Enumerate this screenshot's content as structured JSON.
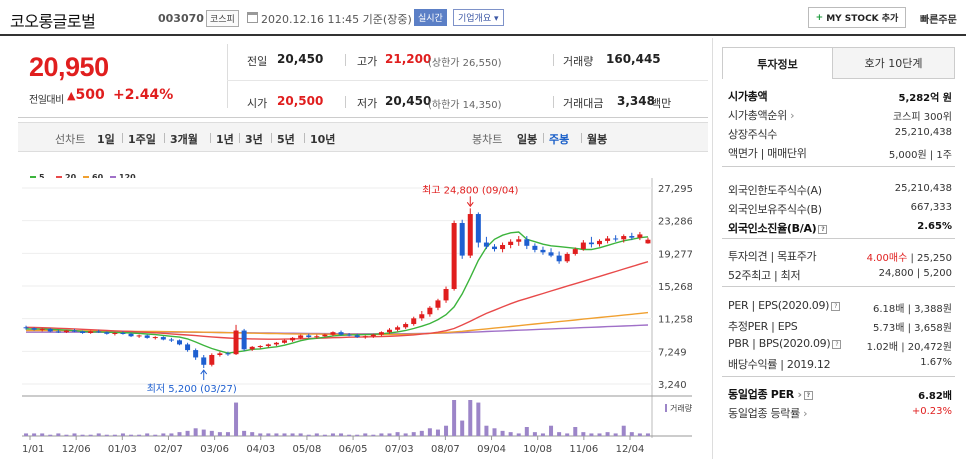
{
  "header": {
    "stock_name": "코오롱글로벌",
    "stock_code": "003070",
    "market": "코스피",
    "timestamp": "2020.12.16 11:45 기준(장중)",
    "realtime_badge": "실시간",
    "company_overview": "기업개요",
    "mystock_button": "MY STOCK 추가",
    "quick_order": "빠른주문"
  },
  "price": {
    "current": "20,950",
    "change_label": "전일대비",
    "change_amount": "500",
    "change_pct": "+2.44%"
  },
  "quote": {
    "prev_close_label": "전일",
    "prev_close": "20,450",
    "high_label": "고가",
    "high": "21,200",
    "upper_limit": "(상한가 26,550)",
    "volume_label": "거래량",
    "volume": "160,445",
    "open_label": "시가",
    "open": "20,500",
    "low_label": "저가",
    "low": "20,450",
    "lower_limit": "(하한가 14,350)",
    "trade_value_label": "거래대금",
    "trade_value": "3,348",
    "trade_value_unit": "백만"
  },
  "period_bar": {
    "line_label": "선차트",
    "line_items": [
      "1일",
      "1주일",
      "3개월",
      "1년",
      "3년",
      "5년",
      "10년"
    ],
    "candle_label": "봉차트",
    "candle_items": [
      "일봉",
      "주봉",
      "월봉"
    ],
    "active_candle": "주봉"
  },
  "colors": {
    "up": "#e01e1e",
    "down": "#1e5fd0",
    "ma5": "#3cb43c",
    "ma20": "#e84a4a",
    "ma60": "#f0a030",
    "ma120": "#a070c8",
    "volume": "#9c85c8"
  },
  "chart_data": {
    "type": "line",
    "legend": [
      {
        "label": "5",
        "color": "#3cb43c"
      },
      {
        "label": "20",
        "color": "#e84a4a"
      },
      {
        "label": "60",
        "color": "#f0a030"
      },
      {
        "label": "120",
        "color": "#a070c8"
      }
    ],
    "y_ticks": [
      "27,295",
      "23,286",
      "19,277",
      "15,268",
      "11,258",
      "7,249",
      "3,240"
    ],
    "ylim": [
      3240,
      27295
    ],
    "x_ticks": [
      "11/01",
      "12/06",
      "01/03",
      "02/07",
      "03/06",
      "04/03",
      "05/08",
      "06/05",
      "07/03",
      "08/07",
      "09/04",
      "10/08",
      "11/06",
      "12/04"
    ],
    "annotations": {
      "high": "최고 24,800 (09/04)",
      "low": "최저 5,200 (03/27)"
    },
    "volume_label": "거래량",
    "candles": [
      [
        10200,
        10400,
        9900,
        10100
      ],
      [
        10100,
        10200,
        9800,
        9900
      ],
      [
        9900,
        10100,
        9700,
        10000
      ],
      [
        10000,
        10100,
        9600,
        9700
      ],
      [
        9700,
        9900,
        9500,
        9600
      ],
      [
        9600,
        9900,
        9500,
        9800
      ],
      [
        9800,
        10000,
        9600,
        9700
      ],
      [
        9700,
        9800,
        9400,
        9500
      ],
      [
        9500,
        9800,
        9400,
        9700
      ],
      [
        9700,
        9900,
        9500,
        9600
      ],
      [
        9600,
        9700,
        9300,
        9400
      ],
      [
        9400,
        9600,
        9200,
        9500
      ],
      [
        9500,
        9700,
        9300,
        9400
      ],
      [
        9400,
        9500,
        9000,
        9100
      ],
      [
        9100,
        9300,
        8900,
        9200
      ],
      [
        9200,
        9300,
        8800,
        8900
      ],
      [
        8900,
        9100,
        8700,
        9000
      ],
      [
        9000,
        9100,
        8600,
        8700
      ],
      [
        8700,
        8900,
        8400,
        8600
      ],
      [
        8600,
        8700,
        8000,
        8100
      ],
      [
        8100,
        8300,
        7200,
        7400
      ],
      [
        7400,
        7600,
        6200,
        6500
      ],
      [
        6500,
        6800,
        5200,
        5600
      ],
      [
        5600,
        7000,
        5400,
        6800
      ],
      [
        6800,
        7200,
        6600,
        7000
      ],
      [
        7000,
        7200,
        6700,
        6900
      ],
      [
        6900,
        10500,
        6800,
        9800
      ],
      [
        9800,
        10000,
        7300,
        7500
      ],
      [
        7500,
        7900,
        7300,
        7800
      ],
      [
        7800,
        8000,
        7600,
        7900
      ],
      [
        7900,
        8200,
        7700,
        8100
      ],
      [
        8100,
        8400,
        7900,
        8300
      ],
      [
        8300,
        8700,
        8200,
        8600
      ],
      [
        8600,
        9000,
        8400,
        8900
      ],
      [
        8900,
        9300,
        8700,
        9200
      ],
      [
        9200,
        9400,
        8900,
        9000
      ],
      [
        9000,
        9300,
        8800,
        9100
      ],
      [
        9100,
        9400,
        9000,
        9300
      ],
      [
        9300,
        9700,
        9100,
        9600
      ],
      [
        9600,
        9800,
        9200,
        9300
      ],
      [
        9300,
        9500,
        9100,
        9200
      ],
      [
        9200,
        9400,
        8900,
        9000
      ],
      [
        9000,
        9200,
        8800,
        9100
      ],
      [
        9100,
        9400,
        8900,
        9300
      ],
      [
        9300,
        9700,
        9100,
        9600
      ],
      [
        9600,
        10100,
        9400,
        9900
      ],
      [
        9900,
        10400,
        9700,
        10200
      ],
      [
        10200,
        10800,
        10000,
        10600
      ],
      [
        10600,
        11500,
        10400,
        11300
      ],
      [
        11300,
        12200,
        11000,
        11800
      ],
      [
        11800,
        12800,
        11500,
        12600
      ],
      [
        12600,
        13700,
        12300,
        13500
      ],
      [
        13500,
        15200,
        13200,
        14900
      ],
      [
        14900,
        23300,
        14700,
        23000
      ],
      [
        23000,
        23400,
        18600,
        19000
      ],
      [
        19000,
        24800,
        18700,
        24100
      ],
      [
        24100,
        24300,
        20000,
        20600
      ],
      [
        20600,
        21300,
        19800,
        20100
      ],
      [
        20100,
        20400,
        19500,
        19800
      ],
      [
        19800,
        20600,
        19400,
        20300
      ],
      [
        20300,
        21000,
        19900,
        20700
      ],
      [
        20700,
        21400,
        20200,
        21000
      ],
      [
        21000,
        21400,
        19800,
        20200
      ],
      [
        20200,
        20500,
        19400,
        19700
      ],
      [
        19700,
        20100,
        19100,
        19400
      ],
      [
        19400,
        19900,
        18800,
        19000
      ],
      [
        19000,
        19500,
        18000,
        18300
      ],
      [
        18300,
        19400,
        18100,
        19200
      ],
      [
        19200,
        20000,
        19000,
        19800
      ],
      [
        19800,
        20900,
        19600,
        20600
      ],
      [
        20600,
        21300,
        20000,
        20400
      ],
      [
        20400,
        21000,
        20100,
        20800
      ],
      [
        20800,
        21400,
        20500,
        21100
      ],
      [
        21100,
        21500,
        20700,
        21000
      ],
      [
        21000,
        21600,
        20600,
        21400
      ],
      [
        21400,
        21800,
        20900,
        21200
      ],
      [
        21200,
        21900,
        20900,
        21600
      ],
      [
        20500,
        21200,
        20450,
        20950
      ]
    ],
    "ma5": [
      10000,
      9990,
      9980,
      9950,
      9900,
      9860,
      9780,
      9700,
      9640,
      9630,
      9600,
      9560,
      9540,
      9500,
      9450,
      9380,
      9300,
      9210,
      9100,
      8990,
      8780,
      8400,
      7980,
      7600,
      7300,
      7020,
      7180,
      7300,
      7500,
      7550,
      7700,
      7800,
      8000,
      8260,
      8560,
      8750,
      8850,
      8980,
      9140,
      9220,
      9260,
      9280,
      9300,
      9340,
      9400,
      9500,
      9630,
      9810,
      10050,
      10330,
      10660,
      11140,
      11740,
      12700,
      14300,
      16300,
      18400,
      20000,
      21000,
      21500,
      21800,
      21900,
      21000,
      20700,
      20400,
      20200,
      20100,
      20000,
      19900,
      19750,
      19750,
      19950,
      20250,
      20550,
      20820,
      21000,
      21200,
      21300
    ],
    "ma20": [
      10200,
      10180,
      10150,
      10110,
      10080,
      10040,
      10000,
      9950,
      9900,
      9850,
      9800,
      9760,
      9720,
      9680,
      9630,
      9580,
      9520,
      9460,
      9390,
      9320,
      9250,
      9180,
      9100,
      9020,
      8950,
      8890,
      8840,
      8800,
      8770,
      8750,
      8740,
      8740,
      8750,
      8770,
      8800,
      8830,
      8860,
      8890,
      8920,
      8950,
      8980,
      9000,
      9020,
      9040,
      9060,
      9100,
      9140,
      9200,
      9270,
      9360,
      9460,
      9600,
      9780,
      10050,
      10480,
      10950,
      11430,
      11900,
      12300,
      12700,
      13100,
      13450,
      13750,
      14050,
      14350,
      14650,
      14950,
      15250,
      15550,
      15850,
      16150,
      16450,
      16750,
      17050,
      17350,
      17650,
      17950,
      18250
    ],
    "ma60": [
      9800,
      9800,
      9800,
      9800,
      9800,
      9790,
      9780,
      9770,
      9760,
      9750,
      9740,
      9730,
      9720,
      9710,
      9700,
      9690,
      9680,
      9670,
      9660,
      9650,
      9640,
      9620,
      9600,
      9580,
      9560,
      9540,
      9520,
      9500,
      9480,
      9460,
      9440,
      9420,
      9400,
      9390,
      9380,
      9370,
      9360,
      9350,
      9340,
      9330,
      9320,
      9310,
      9300,
      9300,
      9300,
      9300,
      9310,
      9330,
      9360,
      9400,
      9450,
      9500,
      9560,
      9630,
      9710,
      9800,
      9900,
      10000,
      10100,
      10200,
      10300,
      10400,
      10500,
      10600,
      10700,
      10800,
      10900,
      11000,
      11100,
      11200,
      11300,
      11400,
      11500,
      11600,
      11700,
      11800,
      11900,
      12000
    ],
    "ma120": [
      9600,
      9600,
      9600,
      9600,
      9600,
      9600,
      9600,
      9600,
      9600,
      9600,
      9600,
      9600,
      9600,
      9600,
      9600,
      9600,
      9600,
      9600,
      9600,
      9600,
      9600,
      9590,
      9580,
      9570,
      9560,
      9550,
      9540,
      9530,
      9520,
      9510,
      9500,
      9490,
      9480,
      9470,
      9460,
      9450,
      9440,
      9430,
      9420,
      9410,
      9400,
      9400,
      9400,
      9400,
      9400,
      9400,
      9400,
      9410,
      9420,
      9440,
      9460,
      9480,
      9500,
      9530,
      9560,
      9600,
      9640,
      9680,
      9720,
      9760,
      9800,
      9840,
      9880,
      9920,
      9960,
      10000,
      10040,
      10080,
      10120,
      10160,
      10200,
      10240,
      10280,
      10320,
      10360,
      10400,
      10440,
      10480
    ],
    "volume": [
      2,
      2,
      2,
      1,
      2,
      1,
      2,
      1,
      1,
      2,
      1,
      1,
      2,
      1,
      1,
      2,
      1,
      2,
      2,
      3,
      4,
      6,
      5,
      4,
      3,
      3,
      26,
      4,
      3,
      2,
      2,
      2,
      2,
      2,
      2,
      1,
      2,
      1,
      2,
      2,
      1,
      1,
      2,
      1,
      2,
      2,
      3,
      2,
      3,
      4,
      6,
      5,
      8,
      28,
      12,
      28,
      26,
      8,
      6,
      4,
      3,
      2,
      7,
      3,
      2,
      8,
      3,
      2,
      7,
      3,
      2,
      2,
      3,
      2,
      8,
      3,
      2,
      2
    ]
  },
  "right_panel": {
    "tabs": [
      "투자정보",
      "호가 10단계"
    ],
    "rows": [
      {
        "label": "시가총액",
        "value": "5,282억 원",
        "bold": true
      },
      {
        "label": "시가총액순위",
        "value": "코스피 300위"
      },
      {
        "label": "상장주식수",
        "value": "25,210,438"
      },
      {
        "label": "액면가 | 매매단위",
        "value": "5,000원 | 1주"
      },
      {
        "label": "외국인한도주식수(A)",
        "value": "25,210,438"
      },
      {
        "label": "외국인보유주식수(B)",
        "value": "667,333"
      },
      {
        "label": "외국인소진율(B/A)",
        "value": "2.65%",
        "bold": true
      },
      {
        "label": "투자의견 | 목표주가",
        "value": "4.00매수 | 25,250"
      },
      {
        "label": "52주최고 | 최저",
        "value": "24,800 | 5,200"
      },
      {
        "label": "PER | EPS(2020.09)",
        "value": "6.18배 | 3,388원"
      },
      {
        "label": "추정PER | EPS",
        "value": "5.73배 | 3,658원"
      },
      {
        "label": "PBR | BPS(2020.09)",
        "value": "1.02배 | 20,472원"
      },
      {
        "label": "배당수익률 | 2019.12",
        "value": "1.67%"
      },
      {
        "label": "동일업종 PER",
        "value": "6.82배",
        "bold": true
      },
      {
        "label": "동일업종 등락률",
        "value": "+0.23%"
      }
    ],
    "opinion_value": "4.00매수",
    "opinion_target": "25,250"
  }
}
